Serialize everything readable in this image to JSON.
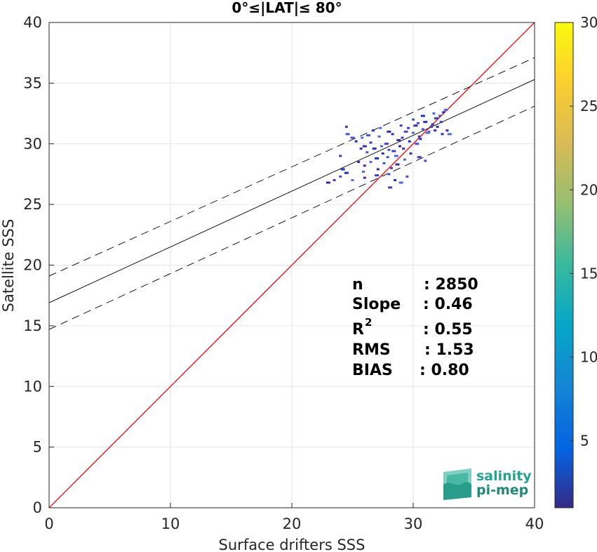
{
  "chart_data": {
    "type": "scatter",
    "title": "0°≤|LAT|≤ 80°",
    "xlabel": "Surface drifters SSS",
    "ylabel": "Satellite SSS",
    "xlim": [
      0,
      40
    ],
    "ylim": [
      0,
      40
    ],
    "xticks": [
      "0",
      "10",
      "20",
      "30",
      "40"
    ],
    "yticks": [
      "0",
      "5",
      "10",
      "15",
      "20",
      "25",
      "30",
      "35",
      "40"
    ],
    "grid": true,
    "colorbar": {
      "range": [
        1,
        30
      ],
      "ticks": [
        "5",
        "10",
        "15",
        "20",
        "25",
        "30"
      ],
      "colormap": "parula"
    },
    "lines": [
      {
        "name": "1:1",
        "color": "#ff0000",
        "style": "solid",
        "intercept": 0,
        "slope": 1
      },
      {
        "name": "fit",
        "color": "#000000",
        "style": "solid",
        "intercept": 16.9,
        "slope": 0.46
      },
      {
        "name": "fit+",
        "color": "#000000",
        "style": "dashed",
        "intercept": 19.1,
        "slope": 0.45
      },
      {
        "name": "fit-",
        "color": "#000000",
        "style": "dashed",
        "intercept": 14.7,
        "slope": 0.46
      }
    ],
    "points": [
      [
        23.0,
        26.8
      ],
      [
        23.5,
        27.0
      ],
      [
        24.0,
        27.3
      ],
      [
        24.5,
        27.6
      ],
      [
        25.0,
        27.0
      ],
      [
        26.0,
        27.2
      ],
      [
        27.0,
        27.4
      ],
      [
        28.0,
        27.5
      ],
      [
        28.5,
        27.0
      ],
      [
        29.0,
        26.8
      ],
      [
        25.5,
        28.5
      ],
      [
        24.0,
        29.0
      ],
      [
        24.6,
        30.8
      ],
      [
        25.3,
        30.2
      ],
      [
        25.8,
        30.5
      ],
      [
        26.0,
        29.8
      ],
      [
        26.5,
        30.1
      ],
      [
        26.2,
        29.3
      ],
      [
        26.8,
        29.6
      ],
      [
        27.2,
        30.6
      ],
      [
        27.5,
        29.2
      ],
      [
        27.8,
        30.0
      ],
      [
        28.0,
        29.5
      ],
      [
        28.3,
        30.8
      ],
      [
        28.6,
        29.0
      ],
      [
        28.9,
        29.8
      ],
      [
        29.1,
        30.5
      ],
      [
        29.4,
        31.0
      ],
      [
        29.7,
        30.2
      ],
      [
        30.0,
        30.9
      ],
      [
        30.2,
        31.5
      ],
      [
        30.5,
        30.6
      ],
      [
        30.8,
        31.2
      ],
      [
        31.0,
        31.8
      ],
      [
        31.3,
        31.0
      ],
      [
        31.6,
        31.6
      ],
      [
        31.9,
        32.1
      ],
      [
        32.2,
        32.3
      ],
      [
        32.5,
        32.6
      ],
      [
        32.7,
        32.8
      ],
      [
        32.0,
        31.4
      ],
      [
        31.5,
        31.4
      ],
      [
        30.3,
        30.0
      ],
      [
        29.8,
        29.2
      ],
      [
        29.3,
        28.7
      ],
      [
        28.7,
        28.3
      ],
      [
        28.2,
        28.0
      ],
      [
        27.6,
        28.4
      ],
      [
        27.0,
        28.8
      ],
      [
        26.5,
        28.5
      ],
      [
        26.0,
        28.2
      ],
      [
        30.5,
        28.9
      ],
      [
        31.0,
        28.6
      ],
      [
        32.4,
        30.8
      ],
      [
        33.0,
        30.8
      ],
      [
        32.8,
        31.1
      ],
      [
        24.5,
        31.4
      ],
      [
        25.0,
        30.5
      ],
      [
        26.7,
        31.1
      ],
      [
        27.3,
        31.3
      ],
      [
        28.0,
        31.0
      ],
      [
        29.0,
        31.5
      ],
      [
        30.0,
        32.0
      ],
      [
        30.8,
        32.3
      ],
      [
        31.7,
        32.5
      ],
      [
        29.2,
        29.6
      ],
      [
        28.4,
        29.4
      ],
      [
        27.9,
        28.9
      ],
      [
        30.6,
        30.4
      ],
      [
        31.2,
        30.9
      ],
      [
        31.8,
        31.1
      ],
      [
        32.3,
        31.8
      ],
      [
        26.3,
        30.7
      ],
      [
        25.7,
        29.6
      ],
      [
        27.4,
        29.8
      ],
      [
        28.8,
        30.3
      ],
      [
        29.6,
        31.3
      ],
      [
        30.4,
        31.7
      ],
      [
        24.2,
        27.9
      ],
      [
        25.9,
        27.7
      ],
      [
        27.1,
        27.9
      ],
      [
        28.1,
        26.4
      ],
      [
        29.5,
        27.3
      ]
    ],
    "stats": [
      {
        "label": "n",
        "value": ": 2850"
      },
      {
        "label": "Slope",
        "value": ": 0.46"
      },
      {
        "label": "R",
        "sup": "2",
        "value": ": 0.55"
      },
      {
        "label": "RMS",
        "value": ": 1.53"
      },
      {
        "label": "BIAS",
        "value": ": 0.80"
      }
    ],
    "logo": {
      "line1": "salinity",
      "line2": "pi-mep"
    }
  }
}
